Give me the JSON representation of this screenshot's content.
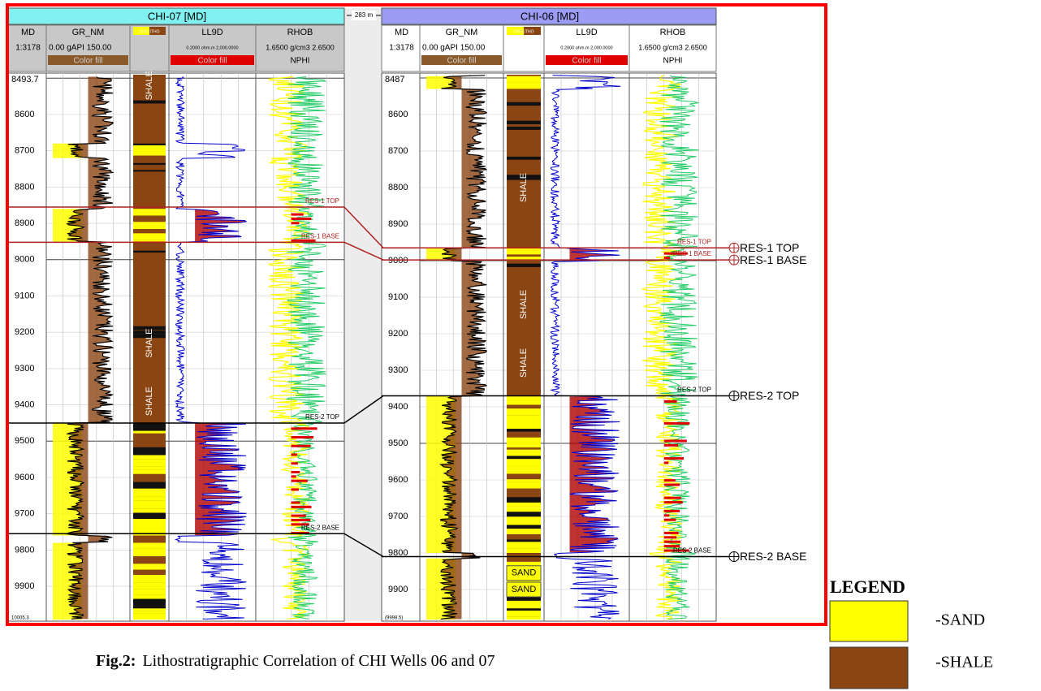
{
  "distance": "283 m",
  "wells": [
    {
      "title": "CHI-07 [MD]",
      "headers": [
        "MD",
        "GR_NM",
        "CHI-LITHO",
        "LL9D",
        "RHOB"
      ],
      "scales": [
        "1:3178",
        "0.00  gAPI  150.00",
        "0.2000 ohm.m 2,000.0000",
        "1.6500 g/cm3 2.6500"
      ],
      "fills": [
        "Color fill",
        "Color fill",
        "NPHI"
      ],
      "depth_top": "8493.7",
      "depth_ticks": [
        8600,
        8700,
        8800,
        8900,
        9000,
        9100,
        9200,
        9300,
        9400,
        9500,
        9600,
        9700,
        9800,
        9900
      ],
      "depth_bottom": "10005.3",
      "litho_labels": [
        "SHALE",
        "SHALE",
        "SHALE"
      ],
      "markers": [
        "RES-1 TOP",
        "RES-1 BASE",
        "RES-2 TOP",
        "RES-2 BASE"
      ]
    },
    {
      "title": "CHI-06 [MD]",
      "headers": [
        "MD",
        "GR_NM",
        "CHI-LITHO",
        "LL9D",
        "RHOB"
      ],
      "scales": [
        "1:3178",
        "0.00  gAPI  150.00",
        "0.2000 ohm.m 2,000.0000",
        "1.6500 g/cm3 2.6500"
      ],
      "fills": [
        "Color fill",
        "Color fill",
        "NPHI"
      ],
      "depth_top": "8487",
      "depth_ticks": [
        8600,
        8700,
        8800,
        8900,
        9000,
        9100,
        9200,
        9300,
        9400,
        9500,
        9600,
        9700,
        9800,
        9900
      ],
      "depth_bottom": "(9998.5)",
      "litho_labels": [
        "SHALE",
        "SHALE",
        "SHALE",
        "SAND",
        "SAND"
      ],
      "markers": [
        "RES-1 TOP",
        "RES-1 BASE",
        "RES-2 TOP",
        "RES-2 BASE"
      ]
    }
  ],
  "correlation_labels": [
    "RES-1 TOP",
    "RES-1 BASE",
    "RES-2 TOP",
    "RES-2 BASE"
  ],
  "legend": {
    "title": "LEGEND",
    "items": [
      "-SAND",
      "-SHALE"
    ]
  },
  "caption": {
    "label": "Fig.2:",
    "text": "Lithostratigraphic Correlation of CHI Wells 06 and 07"
  }
}
